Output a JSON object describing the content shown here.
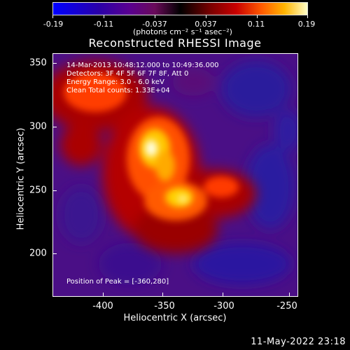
{
  "colorbar": {
    "tick_labels": [
      "-0.19",
      "-0.11",
      "-0.037",
      "0.037",
      "0.11",
      "0.19"
    ],
    "units": "(photons cm⁻² s⁻¹ asec⁻²)",
    "colors": [
      "#0000ff",
      "#5a0090",
      "#000000",
      "#c80000",
      "#ff5a00",
      "#ffffc8"
    ]
  },
  "plot": {
    "title": "Reconstructed RHESSI Image",
    "annotations": {
      "time": "14-Mar-2013 10:48:12.000 to 10:49:36.000",
      "detectors": "Detectors: 3F 4F 5F 6F 7F 8F, Att 0",
      "energy": "Energy Range: 3.0 - 6.0 keV",
      "method": "Clean     Total counts: 1.33E+04",
      "peak": "Position of Peak = [-360,280]"
    },
    "x_axis": {
      "title": "Heliocentric X (arcsec)",
      "tick_labels": [
        "-400",
        "-350",
        "-300",
        "-250"
      ]
    },
    "y_axis": {
      "title": "Heliocentric Y (arcsec)",
      "tick_labels": [
        "350",
        "300",
        "250",
        "200"
      ]
    }
  },
  "timestamp": "11-May-2022 23:18"
}
